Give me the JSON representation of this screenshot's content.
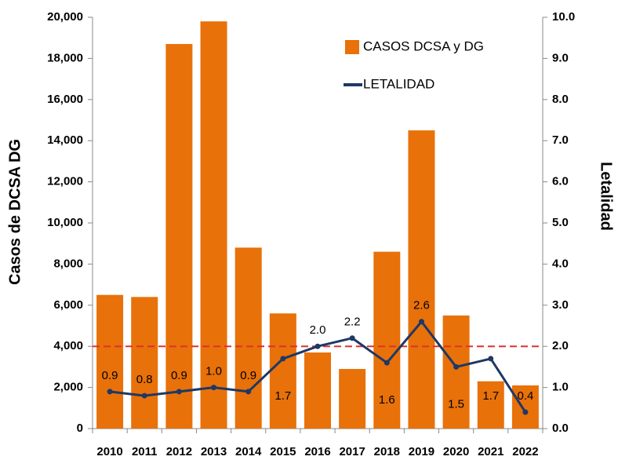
{
  "chart_data": {
    "type": "bar_line",
    "categories": [
      "2010",
      "2011",
      "2012",
      "2013",
      "2014",
      "2015",
      "2016",
      "2017",
      "2018",
      "2019",
      "2020",
      "2021",
      "2022"
    ],
    "series": [
      {
        "name": "CASOS DCSA y DG",
        "type": "bar",
        "color": "#e8710a",
        "values": [
          6500,
          6400,
          18700,
          19800,
          8800,
          5600,
          3700,
          2900,
          8600,
          14500,
          5500,
          2300,
          2100
        ]
      },
      {
        "name": "LETALIDAD",
        "type": "line",
        "axis": "y2",
        "color": "#1f3864",
        "values": [
          0.9,
          0.8,
          0.9,
          1.0,
          0.9,
          1.7,
          2.0,
          2.2,
          1.6,
          2.6,
          1.5,
          1.7,
          0.4
        ],
        "value_labels": [
          "0.9",
          "0.8",
          "0.9",
          "1.0",
          "0.9",
          "1.7",
          "2.0",
          "2.2",
          "1.6",
          "2.6",
          "1.5",
          "1.7",
          "0.4"
        ]
      }
    ],
    "y_label": "Casos de DCSA  DG",
    "y2_label": "Letalidad",
    "ylim": [
      0,
      20000
    ],
    "yticks": [
      0,
      {
        "value": 2000,
        "label": "2,000"
      },
      {
        "value": 4000,
        "label": "4,000"
      },
      {
        "value": 6000,
        "label": "6,000"
      },
      {
        "value": 8000,
        "label": "8,000"
      },
      {
        "value": 10000,
        "label": "10,000"
      },
      {
        "value": 12000,
        "label": "12,000"
      },
      {
        "value": 14000,
        "label": "14,000"
      },
      {
        "value": 16000,
        "label": "16,000"
      },
      {
        "value": 18000,
        "label": "18,000"
      },
      {
        "value": 20000,
        "label": "20,000"
      }
    ],
    "y2lim": [
      0,
      10
    ],
    "y2ticks": [
      {
        "value": 0,
        "label": "0.0"
      },
      {
        "value": 1,
        "label": "1.0"
      },
      {
        "value": 2,
        "label": "2.0"
      },
      {
        "value": 3,
        "label": "3.0"
      },
      {
        "value": 4,
        "label": "4.0"
      },
      {
        "value": 5,
        "label": "5.0"
      },
      {
        "value": 6,
        "label": "6.0"
      },
      {
        "value": 7,
        "label": "7.0"
      },
      {
        "value": 8,
        "label": "8.0"
      },
      {
        "value": 9,
        "label": "9.0"
      },
      {
        "value": 10,
        "label": "10.0"
      }
    ],
    "reference_line": {
      "value": 2.0,
      "axis": "y2",
      "color": "#e03030"
    },
    "legend": "top-right"
  }
}
